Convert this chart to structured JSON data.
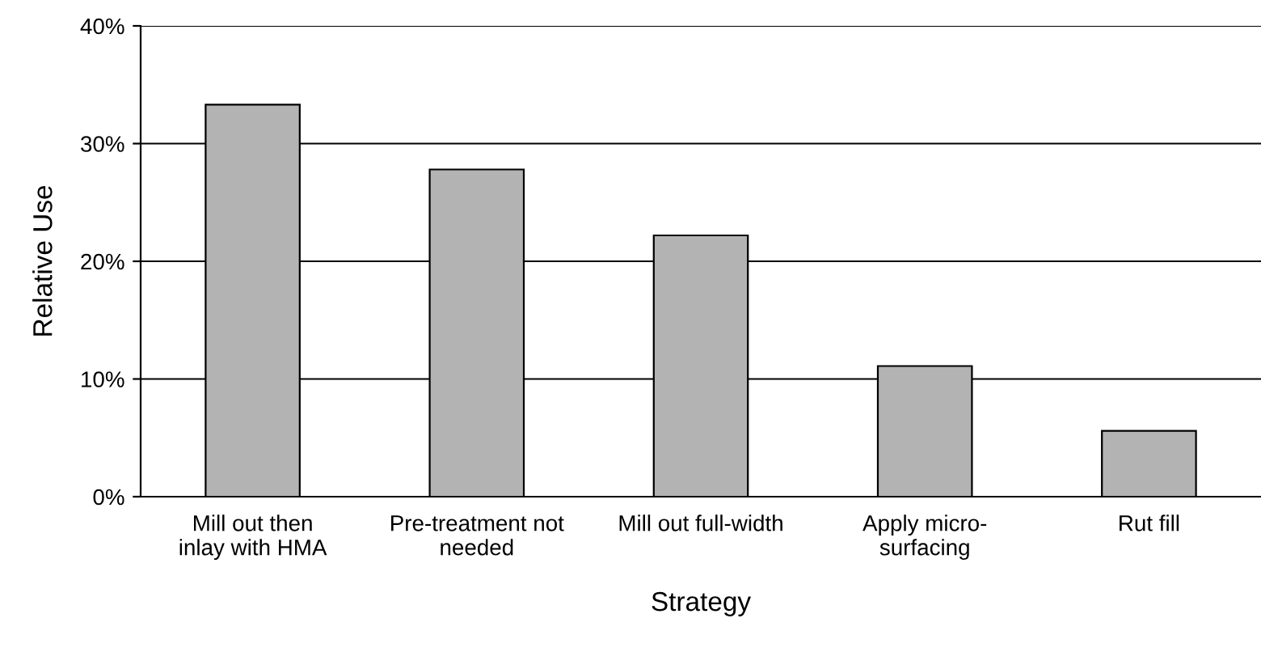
{
  "chart_data": {
    "type": "bar",
    "xlabel": "Strategy",
    "ylabel": "Relative Use",
    "categories": [
      "Mill out then\ninlay with HMA",
      "Pre-treatment not\nneeded",
      "Mill out full-width",
      "Apply micro-\nsurfacing",
      "Rut fill"
    ],
    "values": [
      33.3,
      27.8,
      22.2,
      11.1,
      5.6
    ],
    "color": "#b3b3b3",
    "ylim": [
      0,
      40
    ],
    "yticks": [
      {
        "value": 0,
        "label": "0%"
      },
      {
        "value": 10,
        "label": "10%"
      },
      {
        "value": 20,
        "label": "20%"
      },
      {
        "value": 30,
        "label": "30%"
      },
      {
        "value": 40,
        "label": "40%"
      }
    ],
    "grid": "y"
  }
}
